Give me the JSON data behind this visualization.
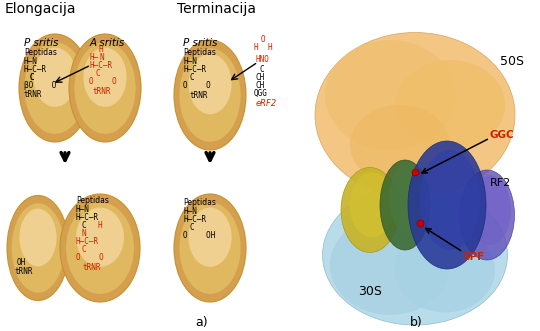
{
  "title_elongacija": "Elongacija",
  "title_terminacija": "Terminacija",
  "label_a": "a)",
  "label_b": "b)",
  "label_50S": "50S",
  "label_30S": "30S",
  "label_RF2": "RF2",
  "label_GGC": "GGC",
  "label_SPF": "SPF",
  "label_eRF2": "eRF2",
  "ellipse_fill": "#DEB86A",
  "ellipse_fill2": "#E8C87A",
  "ellipse_edge": "#C8922A",
  "bg_color": "#FFFFFF",
  "red": "#CC2200",
  "black": "#111111",
  "orange50s": "#F0C080",
  "blue30s": "#A8D8E8",
  "yellow_rna": "#C8B830",
  "green_rna": "#4A7040",
  "blue_rf2": "#2838A0",
  "purple_rf2": "#6858B8"
}
